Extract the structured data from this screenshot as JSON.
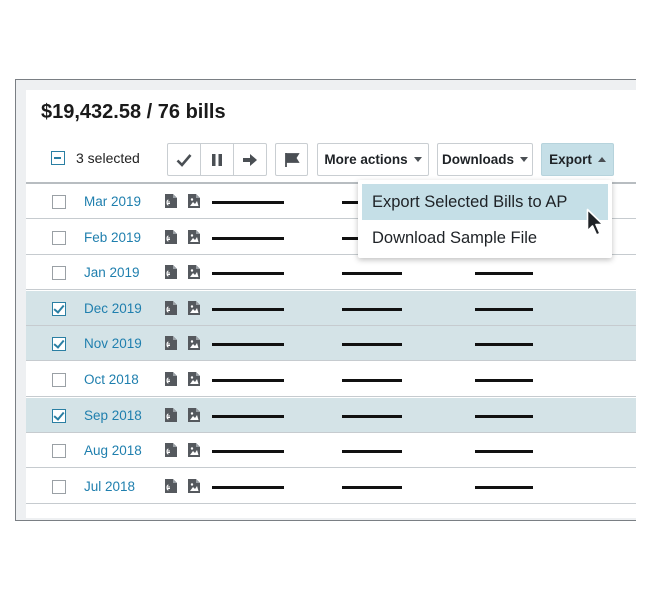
{
  "summary": {
    "total": "$19,432.58 / 76 bills"
  },
  "toolbar": {
    "selected_count": "3 selected",
    "more_actions": "More actions",
    "downloads": "Downloads",
    "export": "Export"
  },
  "icons": {
    "approve": "check-icon",
    "hold": "pause-icon",
    "forward": "arrow-right-icon",
    "flag": "flag-icon",
    "bill": "bill-document-icon",
    "image": "image-document-icon"
  },
  "colors": {
    "accent": "#1f7fae",
    "selected_row": "#d4e3e7",
    "export_button": "#c5dfe7"
  },
  "export_menu": {
    "items": [
      "Export Selected Bills to AP",
      "Download Sample File"
    ]
  },
  "bills": [
    {
      "date": "Mar 2019",
      "selected": false
    },
    {
      "date": "Feb 2019",
      "selected": false
    },
    {
      "date": "Jan 2019",
      "selected": false
    },
    {
      "date": "Dec 2019",
      "selected": true
    },
    {
      "date": "Nov 2019",
      "selected": true
    },
    {
      "date": "Oct 2018",
      "selected": false
    },
    {
      "date": "Sep 2018",
      "selected": true
    },
    {
      "date": "Aug 2018",
      "selected": false
    },
    {
      "date": "Jul 2018",
      "selected": false
    }
  ]
}
